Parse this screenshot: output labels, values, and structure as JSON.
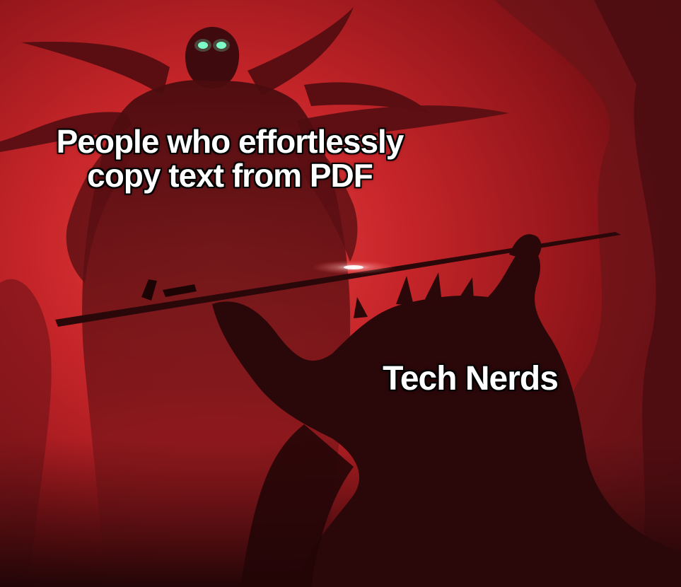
{
  "meme": {
    "top_caption": "People who effortlessly\ncopy text from PDF",
    "bottom_caption": "Tech Nerds"
  },
  "colors": {
    "sky_bright": "#e03a3a",
    "sky_mid": "#b41f24",
    "sky_dark": "#5a0d10",
    "silhouette": "#2a0708",
    "eyes": "#7dffc9"
  },
  "icons": {
    "demon": "demon-silhouette",
    "warrior": "kneeling-warrior-silhouette",
    "sword": "sword-offering"
  }
}
